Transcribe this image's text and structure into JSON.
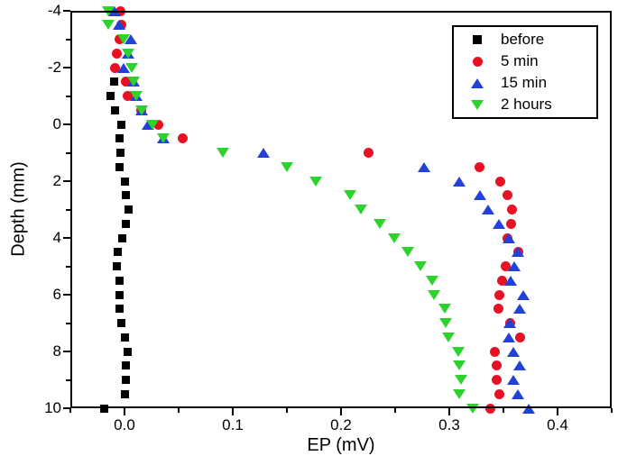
{
  "chart_data": {
    "type": "scatter",
    "title": "",
    "xlabel": "EP (mV)",
    "ylabel": "Depth (mm)",
    "grid": false,
    "x_axis": {
      "min": -0.05,
      "max": 0.45,
      "major_ticks": [
        0.0,
        0.1,
        0.2,
        0.3,
        0.4
      ],
      "major_tick_labels": [
        "0.0",
        "0.1",
        "0.2",
        "0.3",
        "0.4"
      ],
      "minor_ticks": [
        -0.05,
        0.05,
        0.15,
        0.25,
        0.35,
        0.45
      ]
    },
    "y_axis": {
      "min": -4,
      "max": 10,
      "inverted_depth_axis": true,
      "major_ticks": [
        -4,
        -2,
        0,
        2,
        4,
        6,
        8,
        10
      ],
      "major_tick_labels": [
        "-4",
        "-2",
        "0",
        "2",
        "4",
        "6",
        "8",
        "10"
      ],
      "minor_ticks": [
        -3,
        -1,
        1,
        3,
        5,
        7,
        9
      ]
    },
    "legend": {
      "position": "top-right"
    },
    "point_format": "[depth_mm, ep_mV]",
    "series": [
      {
        "name": "before",
        "marker": "square",
        "color": "#000000",
        "points": [
          [
            -1.5,
            -0.01
          ],
          [
            -1.0,
            -0.013
          ],
          [
            -0.5,
            -0.009
          ],
          [
            0.0,
            -0.003
          ],
          [
            0.5,
            -0.005
          ],
          [
            1.0,
            -0.004
          ],
          [
            1.5,
            -0.005
          ],
          [
            2.0,
            0.0
          ],
          [
            2.5,
            0.001
          ],
          [
            3.0,
            0.004
          ],
          [
            3.5,
            0.001
          ],
          [
            4.0,
            -0.002
          ],
          [
            4.5,
            -0.006
          ],
          [
            5.0,
            -0.007
          ],
          [
            5.5,
            -0.005
          ],
          [
            6.0,
            -0.005
          ],
          [
            6.5,
            -0.005
          ],
          [
            7.0,
            -0.003
          ],
          [
            7.5,
            0.0
          ],
          [
            8.0,
            0.003
          ],
          [
            8.5,
            0.001
          ],
          [
            9.0,
            0.001
          ],
          [
            9.5,
            0.0
          ],
          [
            10.0,
            -0.019
          ]
        ]
      },
      {
        "name": "5 min",
        "marker": "circle",
        "color": "#e81123",
        "points": [
          [
            -4.0,
            -0.004
          ],
          [
            -3.5,
            -0.003
          ],
          [
            -3.0,
            -0.005
          ],
          [
            -2.5,
            -0.007
          ],
          [
            -2.0,
            -0.009
          ],
          [
            -1.5,
            0.001
          ],
          [
            -1.0,
            0.003
          ],
          [
            -0.5,
            0.015
          ],
          [
            0.0,
            0.031
          ],
          [
            0.5,
            0.054
          ],
          [
            1.0,
            0.225
          ],
          [
            1.5,
            0.328
          ],
          [
            2.0,
            0.347
          ],
          [
            2.5,
            0.354
          ],
          [
            3.0,
            0.358
          ],
          [
            3.5,
            0.357
          ],
          [
            4.0,
            0.354
          ],
          [
            4.5,
            0.364
          ],
          [
            5.0,
            0.352
          ],
          [
            5.5,
            0.349
          ],
          [
            6.0,
            0.346
          ],
          [
            6.5,
            0.345
          ],
          [
            7.0,
            0.356
          ],
          [
            7.5,
            0.365
          ],
          [
            8.0,
            0.342
          ],
          [
            8.5,
            0.344
          ],
          [
            9.0,
            0.344
          ],
          [
            9.5,
            0.346
          ],
          [
            10.0,
            0.338
          ]
        ]
      },
      {
        "name": "15 min",
        "marker": "triangle-up",
        "color": "#2241d8",
        "points": [
          [
            -4.0,
            -0.009
          ],
          [
            -3.5,
            -0.005
          ],
          [
            -3.0,
            0.006
          ],
          [
            -2.5,
            0.003
          ],
          [
            -2.0,
            -0.001
          ],
          [
            -1.5,
            0.008
          ],
          [
            -1.0,
            0.011
          ],
          [
            -0.5,
            0.016
          ],
          [
            0.0,
            0.022
          ],
          [
            0.5,
            0.036
          ],
          [
            1.0,
            0.128
          ],
          [
            1.5,
            0.277
          ],
          [
            2.0,
            0.309
          ],
          [
            2.5,
            0.328
          ],
          [
            3.0,
            0.336
          ],
          [
            3.5,
            0.346
          ],
          [
            4.0,
            0.355
          ],
          [
            4.5,
            0.363
          ],
          [
            5.0,
            0.36
          ],
          [
            5.5,
            0.357
          ],
          [
            6.0,
            0.368
          ],
          [
            6.5,
            0.365
          ],
          [
            7.0,
            0.356
          ],
          [
            7.5,
            0.355
          ],
          [
            8.0,
            0.359
          ],
          [
            8.5,
            0.365
          ],
          [
            9.0,
            0.359
          ],
          [
            9.5,
            0.363
          ],
          [
            10.0,
            0.373
          ]
        ]
      },
      {
        "name": "2 hours",
        "marker": "triangle-down",
        "color": "#2dd22d",
        "points": [
          [
            -4.0,
            -0.015
          ],
          [
            -3.5,
            -0.015
          ],
          [
            -3.0,
            -0.001
          ],
          [
            -2.5,
            0.003
          ],
          [
            -2.0,
            0.007
          ],
          [
            -1.5,
            0.008
          ],
          [
            -1.0,
            0.011
          ],
          [
            -0.5,
            0.016
          ],
          [
            0.0,
            0.026
          ],
          [
            0.5,
            0.036
          ],
          [
            1.0,
            0.091
          ],
          [
            1.5,
            0.15
          ],
          [
            2.0,
            0.177
          ],
          [
            2.5,
            0.208
          ],
          [
            3.0,
            0.218
          ],
          [
            3.5,
            0.236
          ],
          [
            4.0,
            0.249
          ],
          [
            4.5,
            0.262
          ],
          [
            5.0,
            0.273
          ],
          [
            5.5,
            0.284
          ],
          [
            6.0,
            0.286
          ],
          [
            6.5,
            0.296
          ],
          [
            7.0,
            0.297
          ],
          [
            7.5,
            0.299
          ],
          [
            8.0,
            0.308
          ],
          [
            8.5,
            0.309
          ],
          [
            9.0,
            0.311
          ],
          [
            9.5,
            0.309
          ],
          [
            10.0,
            0.322
          ]
        ]
      }
    ]
  }
}
